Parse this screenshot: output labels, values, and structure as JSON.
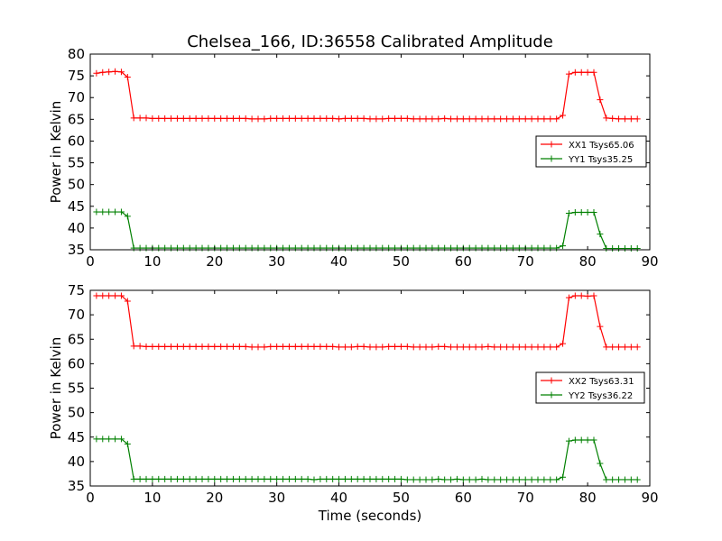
{
  "figure": {
    "title": "Chelsea_166, ID:36558 Calibrated Amplitude"
  },
  "chart_data": [
    {
      "type": "line",
      "ylabel": "Power in Kelvin",
      "xlabel": "",
      "xlim": [
        0,
        90
      ],
      "ylim": [
        35,
        80
      ],
      "xticks": [
        0,
        10,
        20,
        30,
        40,
        50,
        60,
        70,
        80,
        90
      ],
      "yticks": [
        35,
        40,
        45,
        50,
        55,
        60,
        65,
        70,
        75,
        80
      ],
      "legend_position": "center-right",
      "series": [
        {
          "name": "XX1 Tsys65.06",
          "color": "#ff0000",
          "x": [
            1,
            2,
            3,
            4,
            5,
            6,
            7,
            8,
            9,
            10,
            11,
            12,
            13,
            14,
            15,
            16,
            17,
            18,
            19,
            20,
            21,
            22,
            23,
            24,
            25,
            26,
            27,
            28,
            29,
            30,
            31,
            32,
            33,
            34,
            35,
            36,
            37,
            38,
            39,
            40,
            41,
            42,
            43,
            44,
            45,
            46,
            47,
            48,
            49,
            50,
            51,
            52,
            53,
            54,
            55,
            56,
            57,
            58,
            59,
            60,
            61,
            62,
            63,
            64,
            65,
            66,
            67,
            68,
            69,
            70,
            71,
            72,
            73,
            74,
            75,
            76,
            77,
            78,
            79,
            80,
            81,
            82,
            83,
            84,
            85,
            86,
            87,
            88
          ],
          "y": [
            75.6,
            75.8,
            75.9,
            76.0,
            75.9,
            74.7,
            65.3,
            65.3,
            65.3,
            65.2,
            65.2,
            65.2,
            65.2,
            65.2,
            65.2,
            65.2,
            65.2,
            65.2,
            65.2,
            65.2,
            65.2,
            65.2,
            65.2,
            65.2,
            65.2,
            65.1,
            65.1,
            65.1,
            65.2,
            65.2,
            65.2,
            65.2,
            65.2,
            65.2,
            65.2,
            65.2,
            65.2,
            65.2,
            65.2,
            65.1,
            65.2,
            65.2,
            65.2,
            65.2,
            65.1,
            65.1,
            65.1,
            65.2,
            65.2,
            65.2,
            65.2,
            65.1,
            65.1,
            65.1,
            65.1,
            65.1,
            65.2,
            65.1,
            65.1,
            65.1,
            65.1,
            65.1,
            65.1,
            65.1,
            65.1,
            65.1,
            65.1,
            65.1,
            65.1,
            65.1,
            65.1,
            65.1,
            65.1,
            65.1,
            65.1,
            65.9,
            75.4,
            75.8,
            75.8,
            75.8,
            75.8,
            69.5,
            65.3,
            65.2,
            65.1,
            65.1,
            65.1,
            65.1
          ]
        },
        {
          "name": "YY1 Tsys35.25",
          "color": "#008000",
          "x": [
            1,
            2,
            3,
            4,
            5,
            6,
            7,
            8,
            9,
            10,
            11,
            12,
            13,
            14,
            15,
            16,
            17,
            18,
            19,
            20,
            21,
            22,
            23,
            24,
            25,
            26,
            27,
            28,
            29,
            30,
            31,
            32,
            33,
            34,
            35,
            36,
            37,
            38,
            39,
            40,
            41,
            42,
            43,
            44,
            45,
            46,
            47,
            48,
            49,
            50,
            51,
            52,
            53,
            54,
            55,
            56,
            57,
            58,
            59,
            60,
            61,
            62,
            63,
            64,
            65,
            66,
            67,
            68,
            69,
            70,
            71,
            72,
            73,
            74,
            75,
            76,
            77,
            78,
            79,
            80,
            81,
            82,
            83,
            84,
            85,
            86,
            87,
            88
          ],
          "y": [
            43.7,
            43.7,
            43.7,
            43.7,
            43.7,
            42.7,
            35.4,
            35.4,
            35.4,
            35.4,
            35.4,
            35.4,
            35.4,
            35.4,
            35.4,
            35.4,
            35.4,
            35.4,
            35.4,
            35.4,
            35.4,
            35.4,
            35.4,
            35.4,
            35.4,
            35.4,
            35.4,
            35.4,
            35.4,
            35.4,
            35.4,
            35.4,
            35.4,
            35.4,
            35.4,
            35.4,
            35.4,
            35.4,
            35.4,
            35.4,
            35.4,
            35.4,
            35.4,
            35.4,
            35.4,
            35.4,
            35.4,
            35.4,
            35.4,
            35.4,
            35.4,
            35.4,
            35.4,
            35.4,
            35.4,
            35.4,
            35.4,
            35.4,
            35.4,
            35.4,
            35.4,
            35.4,
            35.4,
            35.4,
            35.4,
            35.4,
            35.4,
            35.4,
            35.4,
            35.4,
            35.4,
            35.4,
            35.4,
            35.4,
            35.4,
            35.9,
            43.4,
            43.6,
            43.6,
            43.6,
            43.6,
            38.6,
            35.3,
            35.3,
            35.3,
            35.3,
            35.3,
            35.3
          ]
        }
      ]
    },
    {
      "type": "line",
      "ylabel": "Power in Kelvin",
      "xlabel": "Time (seconds)",
      "xlim": [
        0,
        90
      ],
      "ylim": [
        35,
        75
      ],
      "xticks": [
        0,
        10,
        20,
        30,
        40,
        50,
        60,
        70,
        80,
        90
      ],
      "yticks": [
        35,
        40,
        45,
        50,
        55,
        60,
        65,
        70,
        75
      ],
      "legend_position": "center-right",
      "series": [
        {
          "name": "XX2 Tsys63.31",
          "color": "#ff0000",
          "x": [
            1,
            2,
            3,
            4,
            5,
            6,
            7,
            8,
            9,
            10,
            11,
            12,
            13,
            14,
            15,
            16,
            17,
            18,
            19,
            20,
            21,
            22,
            23,
            24,
            25,
            26,
            27,
            28,
            29,
            30,
            31,
            32,
            33,
            34,
            35,
            36,
            37,
            38,
            39,
            40,
            41,
            42,
            43,
            44,
            45,
            46,
            47,
            48,
            49,
            50,
            51,
            52,
            53,
            54,
            55,
            56,
            57,
            58,
            59,
            60,
            61,
            62,
            63,
            64,
            65,
            66,
            67,
            68,
            69,
            70,
            71,
            72,
            73,
            74,
            75,
            76,
            77,
            78,
            79,
            80,
            81,
            82,
            83,
            84,
            85,
            86,
            87,
            88
          ],
          "y": [
            73.9,
            73.9,
            73.9,
            73.9,
            73.9,
            72.8,
            63.6,
            63.6,
            63.5,
            63.5,
            63.5,
            63.5,
            63.5,
            63.5,
            63.5,
            63.5,
            63.5,
            63.5,
            63.5,
            63.5,
            63.5,
            63.5,
            63.5,
            63.5,
            63.5,
            63.4,
            63.4,
            63.4,
            63.5,
            63.5,
            63.5,
            63.5,
            63.5,
            63.5,
            63.5,
            63.5,
            63.5,
            63.5,
            63.5,
            63.4,
            63.4,
            63.4,
            63.5,
            63.5,
            63.4,
            63.4,
            63.4,
            63.5,
            63.5,
            63.5,
            63.5,
            63.4,
            63.4,
            63.4,
            63.4,
            63.5,
            63.5,
            63.4,
            63.4,
            63.4,
            63.4,
            63.4,
            63.4,
            63.5,
            63.4,
            63.4,
            63.4,
            63.4,
            63.4,
            63.4,
            63.4,
            63.4,
            63.4,
            63.4,
            63.4,
            64.1,
            73.5,
            73.9,
            73.9,
            73.8,
            73.9,
            67.6,
            63.4,
            63.4,
            63.4,
            63.4,
            63.4,
            63.4
          ]
        },
        {
          "name": "YY2 Tsys36.22",
          "color": "#008000",
          "x": [
            1,
            2,
            3,
            4,
            5,
            6,
            7,
            8,
            9,
            10,
            11,
            12,
            13,
            14,
            15,
            16,
            17,
            18,
            19,
            20,
            21,
            22,
            23,
            24,
            25,
            26,
            27,
            28,
            29,
            30,
            31,
            32,
            33,
            34,
            35,
            36,
            37,
            38,
            39,
            40,
            41,
            42,
            43,
            44,
            45,
            46,
            47,
            48,
            49,
            50,
            51,
            52,
            53,
            54,
            55,
            56,
            57,
            58,
            59,
            60,
            61,
            62,
            63,
            64,
            65,
            66,
            67,
            68,
            69,
            70,
            71,
            72,
            73,
            74,
            75,
            76,
            77,
            78,
            79,
            80,
            81,
            82,
            83,
            84,
            85,
            86,
            87,
            88
          ],
          "y": [
            44.6,
            44.6,
            44.6,
            44.6,
            44.6,
            43.6,
            36.4,
            36.4,
            36.4,
            36.4,
            36.4,
            36.4,
            36.4,
            36.4,
            36.4,
            36.4,
            36.4,
            36.4,
            36.4,
            36.4,
            36.4,
            36.4,
            36.4,
            36.4,
            36.4,
            36.4,
            36.4,
            36.4,
            36.4,
            36.4,
            36.4,
            36.4,
            36.4,
            36.4,
            36.4,
            36.3,
            36.4,
            36.4,
            36.4,
            36.4,
            36.4,
            36.4,
            36.4,
            36.4,
            36.4,
            36.4,
            36.4,
            36.4,
            36.4,
            36.4,
            36.3,
            36.3,
            36.3,
            36.3,
            36.3,
            36.4,
            36.3,
            36.3,
            36.4,
            36.3,
            36.3,
            36.3,
            36.4,
            36.3,
            36.3,
            36.3,
            36.3,
            36.3,
            36.3,
            36.3,
            36.3,
            36.3,
            36.3,
            36.3,
            36.3,
            36.8,
            44.2,
            44.4,
            44.4,
            44.4,
            44.4,
            39.6,
            36.3,
            36.3,
            36.3,
            36.3,
            36.3,
            36.3
          ]
        }
      ]
    }
  ]
}
